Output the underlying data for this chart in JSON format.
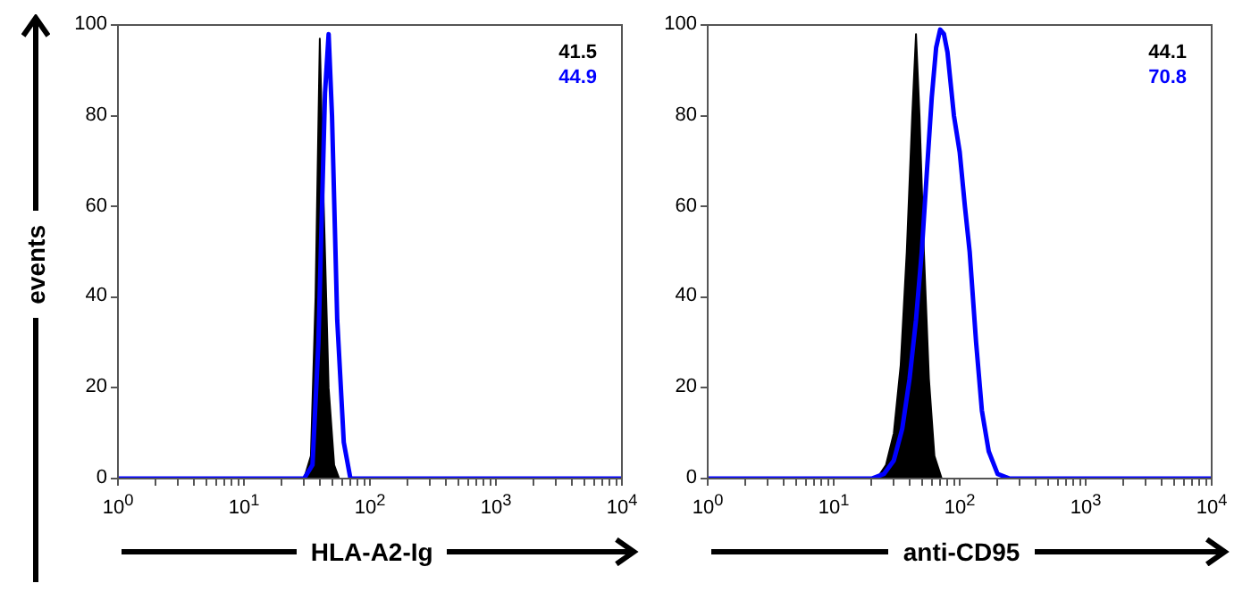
{
  "chart_data": [
    {
      "type": "area",
      "xlabel": "HLA-A2-Ig",
      "ylabel": "events",
      "annotations": [
        "41.5",
        "44.9"
      ],
      "log": "x",
      "legend": false,
      "grid": false,
      "xlim": [
        1,
        10000
      ],
      "ylim": [
        0,
        100
      ],
      "xticks": [
        {
          "value": 1,
          "label": "10$^{0}$"
        },
        {
          "value": 2,
          "label": null
        },
        {
          "value": 3,
          "label": null
        },
        {
          "value": 4,
          "label": null
        },
        {
          "value": 5,
          "label": null
        },
        {
          "value": 6,
          "label": null
        },
        {
          "value": 7,
          "label": null
        },
        {
          "value": 8,
          "label": null
        },
        {
          "value": 9,
          "label": null
        },
        {
          "value": 10,
          "label": "10$^{1}$"
        },
        {
          "value": 20,
          "label": null
        },
        {
          "value": 30,
          "label": null
        },
        {
          "value": 40,
          "label": null
        },
        {
          "value": 50,
          "label": null
        },
        {
          "value": 60,
          "label": null
        },
        {
          "value": 70,
          "label": null
        },
        {
          "value": 80,
          "label": null
        },
        {
          "value": 90,
          "label": null
        },
        {
          "value": 100,
          "label": "10$^{2}$"
        },
        {
          "value": 200,
          "label": null
        },
        {
          "value": 300,
          "label": null
        },
        {
          "value": 400,
          "label": null
        },
        {
          "value": 500,
          "label": null
        },
        {
          "value": 600,
          "label": null
        },
        {
          "value": 700,
          "label": null
        },
        {
          "value": 800,
          "label": null
        },
        {
          "value": 900,
          "label": null
        },
        {
          "value": 1000,
          "label": "10$^{3}$"
        },
        {
          "value": 2000,
          "label": null
        },
        {
          "value": 3000,
          "label": null
        },
        {
          "value": 4000,
          "label": null
        },
        {
          "value": 5000,
          "label": null
        },
        {
          "value": 6000,
          "label": null
        },
        {
          "value": 7000,
          "label": null
        },
        {
          "value": 8000,
          "label": null
        },
        {
          "value": 9000,
          "label": null
        },
        {
          "value": 10000,
          "label": "10$^{4}$"
        }
      ],
      "yticks": [
        0,
        20,
        40,
        60,
        80,
        100
      ],
      "series": [
        {
          "type": "area",
          "color": "#000000",
          "x": [
            1,
            30,
            34,
            37,
            40,
            43,
            47,
            52,
            57,
            10000
          ],
          "values": [
            0,
            0,
            5,
            40,
            97,
            60,
            20,
            3,
            0,
            0
          ]
        },
        {
          "type": "line",
          "color": "#0000ff",
          "x": [
            1,
            30,
            35,
            39,
            44,
            47,
            50,
            55,
            62,
            70,
            10000
          ],
          "values": [
            0,
            0,
            3,
            30,
            85,
            98,
            80,
            35,
            8,
            0,
            0
          ]
        }
      ]
    },
    {
      "type": "area",
      "xlabel": "anti-CD95",
      "annotations": [
        "44.1",
        "70.8"
      ],
      "log": "x",
      "legend": false,
      "grid": false,
      "xlim": [
        1,
        10000
      ],
      "ylim": [
        0,
        100
      ],
      "xticks": [
        {
          "value": 1,
          "label": "10$^{0}$"
        },
        {
          "value": 2,
          "label": null
        },
        {
          "value": 3,
          "label": null
        },
        {
          "value": 4,
          "label": null
        },
        {
          "value": 5,
          "label": null
        },
        {
          "value": 6,
          "label": null
        },
        {
          "value": 7,
          "label": null
        },
        {
          "value": 8,
          "label": null
        },
        {
          "value": 9,
          "label": null
        },
        {
          "value": 10,
          "label": "10$^{1}$"
        },
        {
          "value": 20,
          "label": null
        },
        {
          "value": 30,
          "label": null
        },
        {
          "value": 40,
          "label": null
        },
        {
          "value": 50,
          "label": null
        },
        {
          "value": 60,
          "label": null
        },
        {
          "value": 70,
          "label": null
        },
        {
          "value": 80,
          "label": null
        },
        {
          "value": 90,
          "label": null
        },
        {
          "value": 100,
          "label": "10$^{2}$"
        },
        {
          "value": 200,
          "label": null
        },
        {
          "value": 300,
          "label": null
        },
        {
          "value": 400,
          "label": null
        },
        {
          "value": 500,
          "label": null
        },
        {
          "value": 600,
          "label": null
        },
        {
          "value": 700,
          "label": null
        },
        {
          "value": 800,
          "label": null
        },
        {
          "value": 900,
          "label": null
        },
        {
          "value": 1000,
          "label": "10$^{3}$"
        },
        {
          "value": 2000,
          "label": null
        },
        {
          "value": 3000,
          "label": null
        },
        {
          "value": 4000,
          "label": null
        },
        {
          "value": 5000,
          "label": null
        },
        {
          "value": 6000,
          "label": null
        },
        {
          "value": 7000,
          "label": null
        },
        {
          "value": 8000,
          "label": null
        },
        {
          "value": 9000,
          "label": null
        },
        {
          "value": 10000,
          "label": "10$^{4}$"
        }
      ],
      "yticks": [
        0,
        20,
        40,
        60,
        80,
        100
      ],
      "series": [
        {
          "type": "area",
          "color": "#000000",
          "x": [
            1,
            22,
            26,
            30,
            34,
            38,
            42,
            45,
            48,
            52,
            57,
            63,
            72,
            10000
          ],
          "values": [
            0,
            0,
            3,
            10,
            25,
            50,
            80,
            98,
            80,
            50,
            22,
            5,
            0,
            0
          ]
        },
        {
          "type": "line",
          "color": "#0000ff",
          "x": [
            1,
            20,
            25,
            30,
            35,
            40,
            45,
            50,
            55,
            60,
            65,
            70,
            75,
            80,
            90,
            100,
            110,
            120,
            135,
            150,
            170,
            200,
            250,
            10000
          ],
          "values": [
            0,
            0,
            1,
            4,
            11,
            22,
            35,
            50,
            68,
            84,
            95,
            99,
            98,
            94,
            80,
            72,
            60,
            50,
            30,
            15,
            6,
            1,
            0,
            0
          ]
        }
      ]
    }
  ]
}
